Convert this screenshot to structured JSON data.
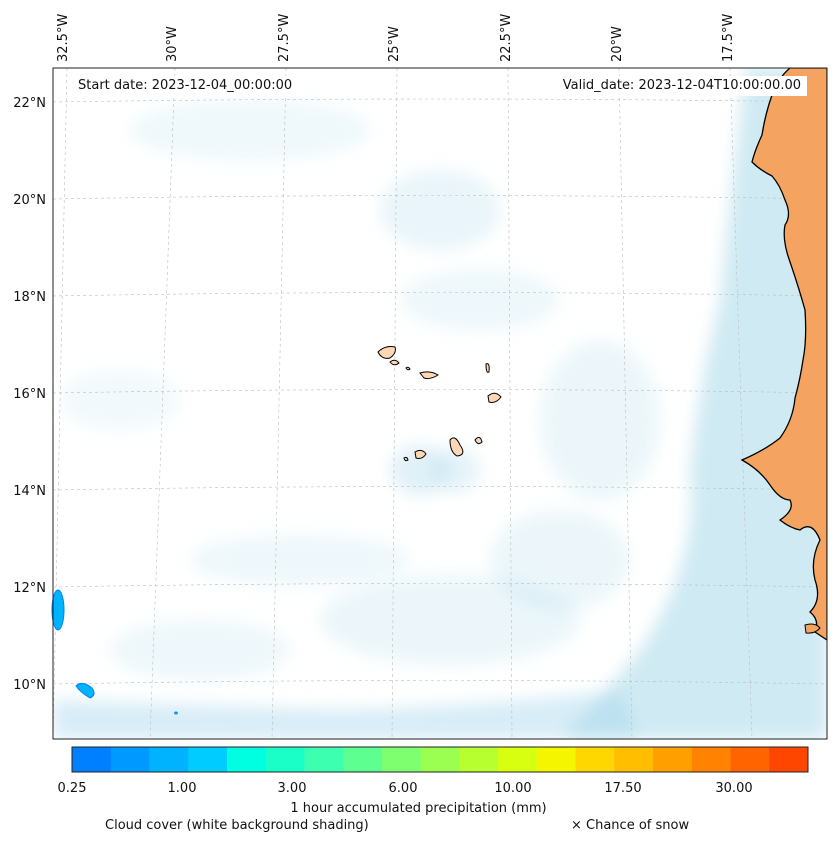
{
  "map": {
    "start_label": "Start date: 2023-12-04_00:00:00",
    "valid_label": "Valid_date: 2023-12-04T10:00:00.00",
    "lon_labels": [
      "32.5°W",
      "30°W",
      "27.5°W",
      "25°W",
      "22.5°W",
      "20°W",
      "17.5°W"
    ],
    "lat_labels": [
      "22°N",
      "20°N",
      "18°N",
      "16°N",
      "14°N",
      "12°N",
      "10°N"
    ],
    "land_color": "#f4a460",
    "ocean_color": "#ffffff",
    "cloud_color": "#a8d8ea"
  },
  "colorbar": {
    "label": "1 hour accumulated precipitation (mm)",
    "ticks": [
      "0.25",
      "1.00",
      "3.00",
      "6.00",
      "10.00",
      "17.50",
      "30.00"
    ],
    "colors": [
      "#0080ff",
      "#0099ff",
      "#00b3ff",
      "#00ccff",
      "#00ffe0",
      "#1affc8",
      "#3dffb0",
      "#5cff90",
      "#7dff70",
      "#9aff50",
      "#b8ff30",
      "#d8ff10",
      "#f5f500",
      "#ffd700",
      "#ffbf00",
      "#ffa000",
      "#ff8200",
      "#ff6400",
      "#ff4600"
    ]
  },
  "legend": {
    "cloud_note": "Cloud cover (white background shading)",
    "snow_note": "× Chance of snow"
  }
}
